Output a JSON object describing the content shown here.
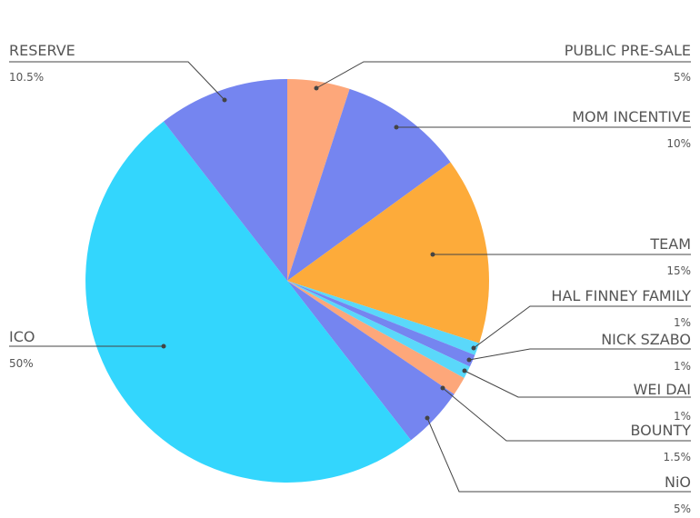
{
  "chart_data": {
    "type": "pie",
    "categories": [
      "PUBLIC PRE-SALE",
      "MOM INCENTIVE",
      "TEAM",
      "HAL FINNEY FAMILY",
      "NICK SZABO",
      "WEI DAI",
      "BOUNTY",
      "NiO",
      "ICO",
      "RESERVE"
    ],
    "values": [
      5,
      10,
      15,
      1,
      1,
      1,
      1.5,
      5,
      50,
      10.5
    ],
    "value_labels": [
      "5%",
      "10%",
      "15%",
      "1%",
      "1%",
      "1%",
      "1.5%",
      "5%",
      "50%",
      "10.5%"
    ],
    "colors": [
      "#fda77a",
      "#7585f0",
      "#fdab3a",
      "#5ad8fa",
      "#7585f0",
      "#5ad8fa",
      "#fda77a",
      "#7585f0",
      "#33d6fd",
      "#7585f0"
    ]
  }
}
